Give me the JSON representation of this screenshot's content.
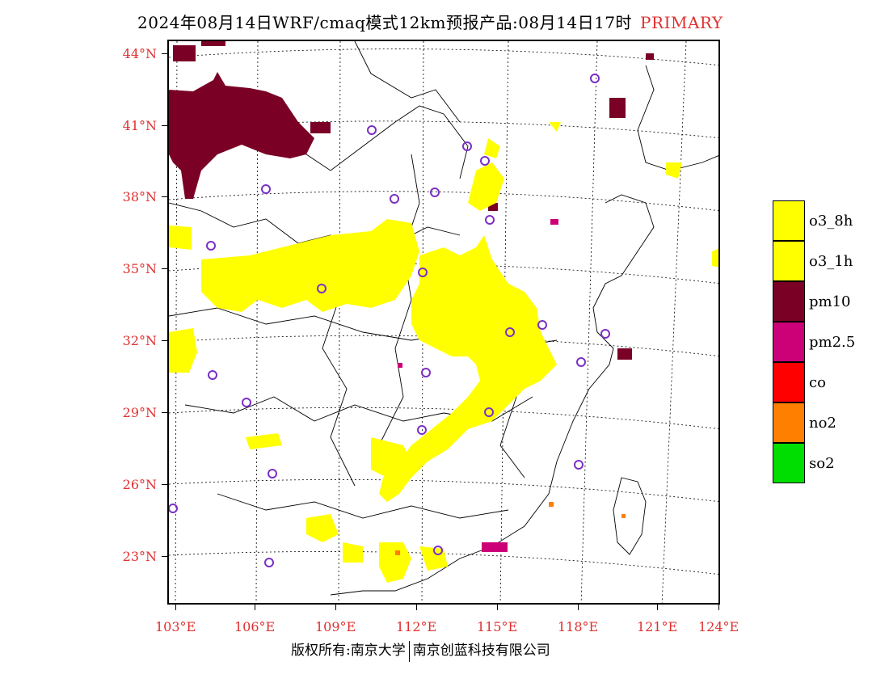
{
  "title": {
    "main": "2024年08月14日WRF/cmaq模式12km预报产品:08月14日17时",
    "tag": "PRIMARY"
  },
  "colors": {
    "o3_8h": "#ffff00",
    "o3_1h": "#ffff00",
    "pm10": "#7a0026",
    "pm2_5": "#cc0077",
    "co": "#ff0000",
    "no2": "#ff8000",
    "so2": "#00dd00",
    "label_red": "#e03030",
    "station_ring": "#7b2fc7"
  },
  "axes": {
    "lat_labels": [
      "44°N",
      "41°N",
      "38°N",
      "35°N",
      "32°N",
      "29°N",
      "26°N",
      "23°N"
    ],
    "lon_labels": [
      "103°E",
      "106°E",
      "109°E",
      "112°E",
      "115°E",
      "118°E",
      "121°E",
      "124°E"
    ]
  },
  "legend": [
    {
      "label": "o3_8h",
      "color_key": "o3_8h"
    },
    {
      "label": "o3_1h",
      "color_key": "o3_1h"
    },
    {
      "label": "pm10",
      "color_key": "pm10"
    },
    {
      "label": "pm2.5",
      "color_key": "pm2_5"
    },
    {
      "label": "co",
      "color_key": "co"
    },
    {
      "label": "no2",
      "color_key": "no2"
    },
    {
      "label": "so2",
      "color_key": "so2"
    }
  ],
  "footer": {
    "left": "版权所有:南京大学",
    "right": "南京创蓝科技有限公司"
  }
}
